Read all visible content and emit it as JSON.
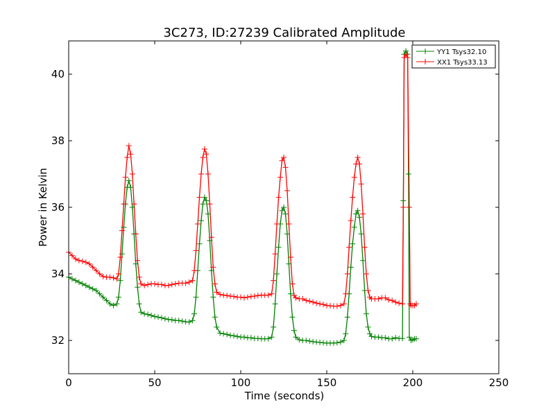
{
  "chart_data": {
    "type": "line",
    "title": "3C273, ID:27239 Calibrated Amplitude",
    "xlabel": "Time (seconds)",
    "ylabel": "Power in Kelvin",
    "xlim": [
      0,
      250
    ],
    "ylim": [
      31,
      41
    ],
    "xticks": [
      0,
      50,
      100,
      150,
      200,
      250
    ],
    "yticks": [
      32,
      34,
      36,
      38,
      40
    ],
    "grid": false,
    "legend_position": "top-right",
    "marker": "+",
    "series": [
      {
        "name": "YY1 Tsys32.10",
        "color": "#008000",
        "points": [
          [
            0,
            33.9
          ],
          [
            2,
            33.85
          ],
          [
            4,
            33.8
          ],
          [
            6,
            33.75
          ],
          [
            8,
            33.7
          ],
          [
            10,
            33.65
          ],
          [
            12,
            33.6
          ],
          [
            14,
            33.55
          ],
          [
            16,
            33.5
          ],
          [
            18,
            33.4
          ],
          [
            20,
            33.3
          ],
          [
            22,
            33.2
          ],
          [
            24,
            33.1
          ],
          [
            26,
            33.05
          ],
          [
            28,
            33.1
          ],
          [
            29,
            33.3
          ],
          [
            30,
            33.8
          ],
          [
            31,
            34.6
          ],
          [
            32,
            35.4
          ],
          [
            33,
            36.1
          ],
          [
            34,
            36.6
          ],
          [
            35,
            36.8
          ],
          [
            36,
            36.6
          ],
          [
            37,
            36.0
          ],
          [
            38,
            35.2
          ],
          [
            39,
            34.3
          ],
          [
            40,
            33.6
          ],
          [
            41,
            33.1
          ],
          [
            42,
            32.85
          ],
          [
            44,
            32.8
          ],
          [
            46,
            32.78
          ],
          [
            48,
            32.75
          ],
          [
            50,
            32.72
          ],
          [
            52,
            32.7
          ],
          [
            54,
            32.68
          ],
          [
            56,
            32.65
          ],
          [
            58,
            32.63
          ],
          [
            60,
            32.62
          ],
          [
            62,
            32.6
          ],
          [
            64,
            32.6
          ],
          [
            66,
            32.58
          ],
          [
            68,
            32.56
          ],
          [
            70,
            32.55
          ],
          [
            72,
            32.6
          ],
          [
            73,
            32.8
          ],
          [
            74,
            33.3
          ],
          [
            75,
            34.1
          ],
          [
            76,
            34.9
          ],
          [
            77,
            35.6
          ],
          [
            78,
            36.1
          ],
          [
            79,
            36.3
          ],
          [
            80,
            36.2
          ],
          [
            81,
            35.8
          ],
          [
            82,
            35.0
          ],
          [
            83,
            34.1
          ],
          [
            84,
            33.3
          ],
          [
            85,
            32.7
          ],
          [
            86,
            32.4
          ],
          [
            88,
            32.22
          ],
          [
            90,
            32.2
          ],
          [
            92,
            32.18
          ],
          [
            94,
            32.15
          ],
          [
            96,
            32.14
          ],
          [
            98,
            32.12
          ],
          [
            100,
            32.1
          ],
          [
            102,
            32.1
          ],
          [
            104,
            32.08
          ],
          [
            106,
            32.08
          ],
          [
            108,
            32.06
          ],
          [
            110,
            32.06
          ],
          [
            112,
            32.05
          ],
          [
            114,
            32.05
          ],
          [
            116,
            32.05
          ],
          [
            118,
            32.1
          ],
          [
            119,
            32.4
          ],
          [
            120,
            33.1
          ],
          [
            121,
            34.0
          ],
          [
            122,
            34.8
          ],
          [
            123,
            35.5
          ],
          [
            124,
            35.9
          ],
          [
            125,
            36.0
          ],
          [
            126,
            35.8
          ],
          [
            127,
            35.2
          ],
          [
            128,
            34.3
          ],
          [
            129,
            33.4
          ],
          [
            130,
            32.7
          ],
          [
            131,
            32.3
          ],
          [
            132,
            32.1
          ],
          [
            134,
            32.02
          ],
          [
            136,
            32.0
          ],
          [
            138,
            32.0
          ],
          [
            140,
            31.98
          ],
          [
            142,
            31.96
          ],
          [
            144,
            31.95
          ],
          [
            146,
            31.94
          ],
          [
            148,
            31.93
          ],
          [
            150,
            31.92
          ],
          [
            152,
            31.92
          ],
          [
            154,
            31.92
          ],
          [
            156,
            31.93
          ],
          [
            158,
            31.95
          ],
          [
            160,
            32.0
          ],
          [
            161,
            32.2
          ],
          [
            162,
            32.7
          ],
          [
            163,
            33.4
          ],
          [
            164,
            34.2
          ],
          [
            165,
            34.9
          ],
          [
            166,
            35.4
          ],
          [
            167,
            35.8
          ],
          [
            168,
            35.9
          ],
          [
            169,
            35.7
          ],
          [
            170,
            35.2
          ],
          [
            171,
            34.4
          ],
          [
            172,
            33.5
          ],
          [
            173,
            32.8
          ],
          [
            174,
            32.4
          ],
          [
            175,
            32.2
          ],
          [
            176,
            32.12
          ],
          [
            178,
            32.1
          ],
          [
            180,
            32.1
          ],
          [
            182,
            32.08
          ],
          [
            184,
            32.08
          ],
          [
            186,
            32.05
          ],
          [
            188,
            32.05
          ],
          [
            190,
            32.08
          ],
          [
            192,
            32.06
          ],
          [
            194,
            32.06
          ],
          [
            194.5,
            36.2
          ],
          [
            195,
            40.6
          ],
          [
            196,
            40.7
          ],
          [
            197,
            40.6
          ],
          [
            197.5,
            37.0
          ],
          [
            198,
            32.1
          ],
          [
            199,
            32.0
          ],
          [
            200,
            32.02
          ],
          [
            201,
            32.05
          ],
          [
            202,
            32.05
          ]
        ]
      },
      {
        "name": "XX1 Tsys33.13",
        "color": "#ff0000",
        "points": [
          [
            0,
            34.65
          ],
          [
            2,
            34.55
          ],
          [
            4,
            34.45
          ],
          [
            6,
            34.4
          ],
          [
            8,
            34.38
          ],
          [
            10,
            34.35
          ],
          [
            12,
            34.3
          ],
          [
            14,
            34.2
          ],
          [
            16,
            34.1
          ],
          [
            18,
            34.0
          ],
          [
            20,
            33.92
          ],
          [
            22,
            33.9
          ],
          [
            24,
            33.9
          ],
          [
            26,
            33.88
          ],
          [
            28,
            33.85
          ],
          [
            29,
            34.0
          ],
          [
            30,
            34.5
          ],
          [
            31,
            35.3
          ],
          [
            32,
            36.1
          ],
          [
            33,
            36.9
          ],
          [
            34,
            37.5
          ],
          [
            35,
            37.85
          ],
          [
            36,
            37.6
          ],
          [
            37,
            37.0
          ],
          [
            38,
            36.1
          ],
          [
            39,
            35.2
          ],
          [
            40,
            34.4
          ],
          [
            41,
            33.9
          ],
          [
            42,
            33.7
          ],
          [
            44,
            33.65
          ],
          [
            46,
            33.68
          ],
          [
            48,
            33.7
          ],
          [
            50,
            33.7
          ],
          [
            52,
            33.68
          ],
          [
            54,
            33.68
          ],
          [
            56,
            33.65
          ],
          [
            58,
            33.65
          ],
          [
            60,
            33.68
          ],
          [
            62,
            33.7
          ],
          [
            64,
            33.72
          ],
          [
            66,
            33.72
          ],
          [
            68,
            33.72
          ],
          [
            70,
            33.75
          ],
          [
            72,
            33.8
          ],
          [
            73,
            34.1
          ],
          [
            74,
            34.7
          ],
          [
            75,
            35.5
          ],
          [
            76,
            36.3
          ],
          [
            77,
            37.0
          ],
          [
            78,
            37.5
          ],
          [
            79,
            37.75
          ],
          [
            80,
            37.6
          ],
          [
            81,
            37.0
          ],
          [
            82,
            36.1
          ],
          [
            83,
            35.1
          ],
          [
            84,
            34.2
          ],
          [
            85,
            33.7
          ],
          [
            86,
            33.45
          ],
          [
            88,
            33.38
          ],
          [
            90,
            33.36
          ],
          [
            92,
            33.35
          ],
          [
            94,
            33.33
          ],
          [
            96,
            33.32
          ],
          [
            98,
            33.3
          ],
          [
            100,
            33.3
          ],
          [
            102,
            33.28
          ],
          [
            104,
            33.3
          ],
          [
            106,
            33.32
          ],
          [
            108,
            33.33
          ],
          [
            110,
            33.35
          ],
          [
            112,
            33.36
          ],
          [
            114,
            33.36
          ],
          [
            116,
            33.36
          ],
          [
            118,
            33.4
          ],
          [
            119,
            33.8
          ],
          [
            120,
            34.6
          ],
          [
            121,
            35.5
          ],
          [
            122,
            36.3
          ],
          [
            123,
            36.9
          ],
          [
            124,
            37.4
          ],
          [
            125,
            37.5
          ],
          [
            126,
            37.2
          ],
          [
            127,
            36.5
          ],
          [
            128,
            35.5
          ],
          [
            129,
            34.5
          ],
          [
            130,
            33.7
          ],
          [
            131,
            33.35
          ],
          [
            132,
            33.28
          ],
          [
            134,
            33.25
          ],
          [
            136,
            33.25
          ],
          [
            138,
            33.2
          ],
          [
            140,
            33.18
          ],
          [
            142,
            33.15
          ],
          [
            144,
            33.12
          ],
          [
            146,
            33.1
          ],
          [
            148,
            33.08
          ],
          [
            150,
            33.05
          ],
          [
            152,
            33.04
          ],
          [
            154,
            33.03
          ],
          [
            156,
            33.03
          ],
          [
            158,
            33.05
          ],
          [
            160,
            33.1
          ],
          [
            161,
            33.4
          ],
          [
            162,
            34.0
          ],
          [
            163,
            34.8
          ],
          [
            164,
            35.6
          ],
          [
            165,
            36.3
          ],
          [
            166,
            36.9
          ],
          [
            167,
            37.3
          ],
          [
            168,
            37.5
          ],
          [
            169,
            37.3
          ],
          [
            170,
            36.7
          ],
          [
            171,
            35.8
          ],
          [
            172,
            34.8
          ],
          [
            173,
            34.0
          ],
          [
            174,
            33.5
          ],
          [
            175,
            33.3
          ],
          [
            176,
            33.25
          ],
          [
            178,
            33.25
          ],
          [
            180,
            33.25
          ],
          [
            182,
            33.28
          ],
          [
            184,
            33.28
          ],
          [
            186,
            33.22
          ],
          [
            188,
            33.2
          ],
          [
            190,
            33.15
          ],
          [
            192,
            33.12
          ],
          [
            194,
            33.1
          ],
          [
            194.5,
            36.0
          ],
          [
            195,
            40.5
          ],
          [
            196,
            40.6
          ],
          [
            197,
            40.5
          ],
          [
            198,
            36.0
          ],
          [
            198.5,
            33.1
          ],
          [
            199,
            33.05
          ],
          [
            200,
            33.05
          ],
          [
            201,
            33.05
          ],
          [
            202,
            33.1
          ]
        ]
      }
    ]
  }
}
